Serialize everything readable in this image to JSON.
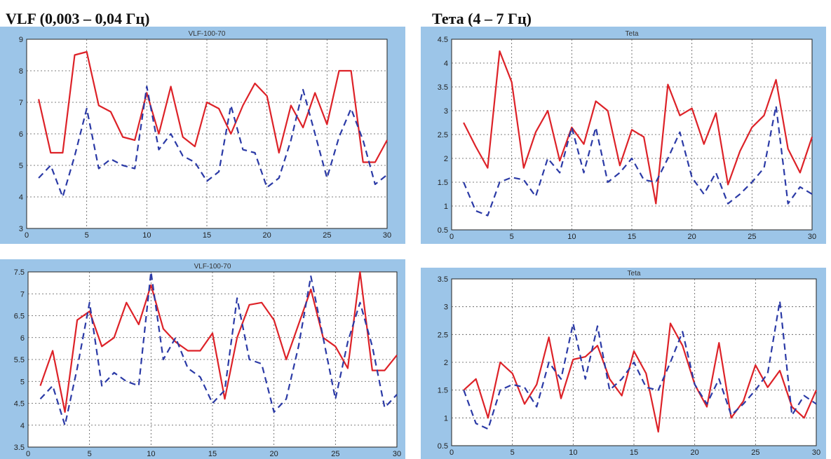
{
  "headers": {
    "left": "VLF (0,003 – 0,04 Гц)",
    "right": "Тета (4 – 7 Гц)"
  },
  "colors": {
    "series_solid": "#dd2228",
    "series_dashed": "#2b3aa6",
    "grid": "#555555",
    "panel": "#9cc5e8"
  },
  "chart_data": [
    {
      "type": "line",
      "title": "VLF-100-70",
      "xlim": [
        0,
        30
      ],
      "ylim": [
        3,
        9
      ],
      "xticks": [
        "0",
        "5",
        "10",
        "15",
        "20",
        "25",
        "30"
      ],
      "yticks": [
        "3",
        "4",
        "5",
        "6",
        "7",
        "8",
        "9"
      ],
      "grid": true,
      "x": [
        1,
        2,
        3,
        4,
        5,
        6,
        7,
        8,
        9,
        10,
        11,
        12,
        13,
        14,
        15,
        16,
        17,
        18,
        19,
        20,
        21,
        22,
        23,
        24,
        25,
        26,
        27,
        28,
        29,
        30
      ],
      "series": [
        {
          "style": "solid",
          "values": [
            7.1,
            5.4,
            5.4,
            8.5,
            8.6,
            6.9,
            6.7,
            5.9,
            5.8,
            7.3,
            6.0,
            7.5,
            5.9,
            5.6,
            7.0,
            6.8,
            6.0,
            6.9,
            7.6,
            7.2,
            5.4,
            6.9,
            6.2,
            7.3,
            6.3,
            8.0,
            8.0,
            5.1,
            5.1,
            5.8
          ]
        },
        {
          "style": "dashed",
          "values": [
            4.6,
            5.0,
            4.0,
            5.3,
            6.8,
            4.9,
            5.2,
            5.0,
            4.9,
            7.5,
            5.5,
            6.0,
            5.3,
            5.1,
            4.5,
            4.8,
            6.9,
            5.5,
            5.4,
            4.3,
            4.6,
            5.8,
            7.4,
            6.0,
            4.6,
            5.9,
            6.8,
            5.8,
            4.4,
            4.7
          ]
        }
      ]
    },
    {
      "type": "line",
      "title": "Teta",
      "xlim": [
        0,
        30
      ],
      "ylim": [
        0.5,
        4.5
      ],
      "xticks": [
        "0",
        "5",
        "10",
        "15",
        "20",
        "25",
        "30"
      ],
      "yticks": [
        "0.5",
        "1",
        "1.5",
        "2",
        "2.5",
        "3",
        "3.5",
        "4",
        "4.5"
      ],
      "grid": true,
      "x": [
        1,
        2,
        3,
        4,
        5,
        6,
        7,
        8,
        9,
        10,
        11,
        12,
        13,
        14,
        15,
        16,
        17,
        18,
        19,
        20,
        21,
        22,
        23,
        24,
        25,
        26,
        27,
        28,
        29,
        30
      ],
      "series": [
        {
          "style": "solid",
          "values": [
            2.75,
            2.25,
            1.8,
            4.25,
            3.6,
            1.8,
            2.55,
            3.0,
            1.95,
            2.65,
            2.3,
            3.2,
            3.0,
            1.85,
            2.6,
            2.45,
            1.05,
            3.55,
            2.9,
            3.05,
            2.3,
            2.95,
            1.45,
            2.15,
            2.65,
            2.9,
            3.65,
            2.2,
            1.7,
            2.45
          ]
        },
        {
          "style": "dashed",
          "values": [
            1.5,
            0.9,
            0.8,
            1.5,
            1.6,
            1.55,
            1.2,
            2.0,
            1.7,
            2.65,
            1.7,
            2.65,
            1.5,
            1.7,
            2.0,
            1.55,
            1.5,
            2.0,
            2.55,
            1.6,
            1.25,
            1.7,
            1.05,
            1.25,
            1.5,
            1.8,
            3.1,
            1.05,
            1.4,
            1.25
          ]
        }
      ]
    },
    {
      "type": "line",
      "title": "VLF-100-70",
      "xlim": [
        0,
        30
      ],
      "ylim": [
        3.5,
        7.5
      ],
      "xticks": [
        "0",
        "5",
        "10",
        "15",
        "20",
        "25",
        "30"
      ],
      "yticks": [
        "3.5",
        "4",
        "4.5",
        "5",
        "5.5",
        "6",
        "6.5",
        "7",
        "7.5"
      ],
      "grid": true,
      "x": [
        1,
        2,
        3,
        4,
        5,
        6,
        7,
        8,
        9,
        10,
        11,
        12,
        13,
        14,
        15,
        16,
        17,
        18,
        19,
        20,
        21,
        22,
        23,
        24,
        25,
        26,
        27,
        28,
        29,
        30
      ],
      "series": [
        {
          "style": "solid",
          "values": [
            4.9,
            5.7,
            4.3,
            6.4,
            6.6,
            5.8,
            6.0,
            6.8,
            6.3,
            7.2,
            6.2,
            5.9,
            5.7,
            5.7,
            6.1,
            4.6,
            6.0,
            6.75,
            6.8,
            6.4,
            5.5,
            6.3,
            7.1,
            6.0,
            5.8,
            5.3,
            7.5,
            5.25,
            5.25,
            5.6
          ]
        },
        {
          "style": "dashed",
          "values": [
            4.6,
            4.9,
            4.0,
            5.3,
            6.8,
            4.9,
            5.2,
            5.0,
            4.9,
            7.5,
            5.5,
            6.0,
            5.3,
            5.1,
            4.5,
            4.8,
            6.9,
            5.5,
            5.4,
            4.3,
            4.6,
            5.8,
            7.4,
            6.0,
            4.6,
            5.9,
            6.8,
            5.8,
            4.4,
            4.7
          ]
        }
      ]
    },
    {
      "type": "line",
      "title": "Teta",
      "xlim": [
        0,
        30
      ],
      "ylim": [
        0.5,
        3.5
      ],
      "xticks": [
        "0",
        "5",
        "10",
        "15",
        "20",
        "25",
        "30"
      ],
      "yticks": [
        "0.5",
        "1",
        "1.5",
        "2",
        "2.5",
        "3",
        "3.5"
      ],
      "grid": true,
      "x": [
        1,
        2,
        3,
        4,
        5,
        6,
        7,
        8,
        9,
        10,
        11,
        12,
        13,
        14,
        15,
        16,
        17,
        18,
        19,
        20,
        21,
        22,
        23,
        24,
        25,
        26,
        27,
        28,
        29,
        30
      ],
      "series": [
        {
          "style": "solid",
          "values": [
            1.5,
            1.7,
            1.0,
            2.0,
            1.8,
            1.25,
            1.6,
            2.45,
            1.35,
            2.05,
            2.1,
            2.3,
            1.7,
            1.4,
            2.2,
            1.8,
            0.75,
            2.7,
            2.3,
            1.6,
            1.2,
            2.35,
            1.0,
            1.3,
            1.95,
            1.55,
            1.85,
            1.2,
            1.0,
            1.5
          ]
        },
        {
          "style": "dashed",
          "values": [
            1.5,
            0.9,
            0.8,
            1.5,
            1.6,
            1.55,
            1.2,
            2.0,
            1.7,
            2.7,
            1.7,
            2.65,
            1.5,
            1.7,
            2.0,
            1.55,
            1.5,
            2.0,
            2.55,
            1.6,
            1.25,
            1.7,
            1.05,
            1.25,
            1.5,
            1.8,
            3.1,
            1.05,
            1.4,
            1.25
          ]
        }
      ]
    }
  ]
}
